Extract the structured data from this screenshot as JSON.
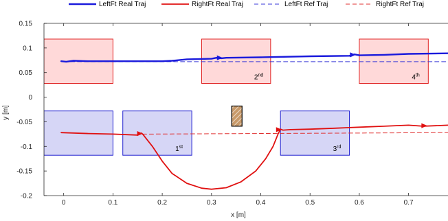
{
  "chart_data": {
    "type": "line",
    "title": "",
    "xlabel": "x [m]",
    "ylabel": "y [m]",
    "xlim": [
      -0.04,
      0.78
    ],
    "ylim": [
      -0.2,
      0.15
    ],
    "xticks": [
      0,
      0.1,
      0.2,
      0.3,
      0.4,
      0.5,
      0.6,
      0.7
    ],
    "xtick_labels": [
      "0",
      "0.1",
      "0.2",
      "0.3",
      "0.4",
      "0.5",
      "0.6",
      "0.7"
    ],
    "yticks": [
      0.15,
      0.1,
      0.05,
      0,
      -0.05,
      -0.1,
      -0.15,
      -0.2
    ],
    "ytick_labels": [
      "0.15",
      "0.1",
      "0.05",
      "0",
      "-0.05",
      "-0.1",
      "-0.15",
      "-0.2"
    ],
    "grid": false,
    "legend_position": "top",
    "colors": {
      "left_real": "#1a1adc",
      "right_real": "#e01010",
      "left_ref": "#3a3ad8",
      "right_ref": "#e03030",
      "left_box_fill": "#ffd9d9",
      "left_box_edge": "#e02020",
      "right_box_fill": "#d6d6f6",
      "right_box_edge": "#2020d0",
      "obstacle_fill": "#c89a6a",
      "obstacle_edge": "#000000"
    },
    "series": [
      {
        "name": "LeftFt Real Traj",
        "style": "solid",
        "width": "thick",
        "x": [
          -0.005,
          0.005,
          0.02,
          0.05,
          0.1,
          0.15,
          0.2,
          0.22,
          0.25,
          0.3,
          0.31,
          0.32,
          0.33,
          0.4,
          0.5,
          0.58,
          0.59,
          0.6,
          0.65,
          0.7,
          0.78
        ],
        "y": [
          0.073,
          0.072,
          0.074,
          0.073,
          0.073,
          0.073,
          0.073,
          0.074,
          0.077,
          0.078,
          0.08,
          0.079,
          0.08,
          0.081,
          0.083,
          0.084,
          0.087,
          0.085,
          0.086,
          0.088,
          0.089
        ]
      },
      {
        "name": "RightFt Real Traj",
        "style": "solid",
        "width": "medium",
        "x": [
          -0.005,
          0.05,
          0.1,
          0.15,
          0.158,
          0.162,
          0.18,
          0.2,
          0.22,
          0.25,
          0.28,
          0.3,
          0.33,
          0.36,
          0.39,
          0.41,
          0.425,
          0.435,
          0.44,
          0.445,
          0.46,
          0.5,
          0.55,
          0.6,
          0.65,
          0.7,
          0.73,
          0.78
        ],
        "y": [
          -0.072,
          -0.074,
          -0.075,
          -0.077,
          -0.073,
          -0.077,
          -0.1,
          -0.13,
          -0.155,
          -0.175,
          -0.185,
          -0.187,
          -0.184,
          -0.172,
          -0.15,
          -0.125,
          -0.1,
          -0.075,
          -0.065,
          -0.067,
          -0.066,
          -0.065,
          -0.063,
          -0.061,
          -0.059,
          -0.057,
          -0.059,
          -0.057
        ]
      },
      {
        "name": "LeftFt Ref Traj",
        "style": "dashed",
        "x": [
          0,
          0.78
        ],
        "y": [
          0.072,
          0.072
        ]
      },
      {
        "name": "RightFt Ref Traj",
        "style": "dashed",
        "x": [
          0.16,
          0.78
        ],
        "y": [
          -0.075,
          -0.072
        ]
      }
    ],
    "arrows": [
      {
        "series": "LeftFt Real Traj",
        "x": 0.32,
        "y": 0.08
      },
      {
        "series": "LeftFt Real Traj",
        "x": 0.59,
        "y": 0.086
      },
      {
        "series": "RightFt Real Traj",
        "x": 0.158,
        "y": -0.074
      },
      {
        "series": "RightFt Real Traj",
        "x": 0.44,
        "y": -0.066
      },
      {
        "series": "RightFt Real Traj",
        "x": 0.735,
        "y": -0.058
      }
    ],
    "left_footholds": [
      {
        "x0": -0.04,
        "x1": 0.1,
        "y0": 0.028,
        "y1": 0.118,
        "label": ""
      },
      {
        "x0": 0.28,
        "x1": 0.42,
        "y0": 0.028,
        "y1": 0.118,
        "label": "2",
        "suffix": "nd"
      },
      {
        "x0": 0.6,
        "x1": 0.74,
        "y0": 0.028,
        "y1": 0.118,
        "label": "4",
        "suffix": "th"
      }
    ],
    "right_footholds": [
      {
        "x0": -0.04,
        "x1": 0.1,
        "y0": -0.118,
        "y1": -0.028,
        "label": ""
      },
      {
        "x0": 0.12,
        "x1": 0.26,
        "y0": -0.118,
        "y1": -0.028,
        "label": "1",
        "suffix": "st"
      },
      {
        "x0": 0.44,
        "x1": 0.58,
        "y0": -0.118,
        "y1": -0.028,
        "label": "3",
        "suffix": "rd"
      }
    ],
    "obstacle": {
      "x0": 0.341,
      "x1": 0.362,
      "y0": -0.059,
      "y1": -0.018
    }
  }
}
